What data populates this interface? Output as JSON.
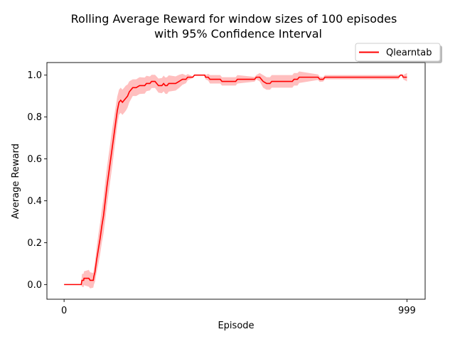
{
  "chart_data": {
    "type": "line",
    "title": "Rolling Average Reward for window sizes of 100 episodes",
    "subtitle": "with 95% Confidence Interval",
    "xlabel": "Episode",
    "ylabel": "Average Reward",
    "xlim": [
      -50,
      1052
    ],
    "ylim": [
      -0.07,
      1.06
    ],
    "x_ticks": [
      {
        "value": 0,
        "label": "0"
      },
      {
        "value": 999,
        "label": "999"
      }
    ],
    "y_ticks": [
      {
        "value": 0.0,
        "label": "0.0"
      },
      {
        "value": 0.2,
        "label": "0.2"
      },
      {
        "value": 0.4,
        "label": "0.4"
      },
      {
        "value": 0.6,
        "label": "0.6"
      },
      {
        "value": 0.8,
        "label": "0.8"
      },
      {
        "value": 1.0,
        "label": "1.0"
      }
    ],
    "grid": false,
    "legend": {
      "position": "above-right",
      "shadow": true
    },
    "series": [
      {
        "name": "Qlearntab",
        "color": "#ff0000",
        "band_color": "#ff8080",
        "points": [
          [
            0,
            0.0
          ],
          [
            50,
            0.0
          ],
          [
            52,
            0.02
          ],
          [
            57,
            0.02
          ],
          [
            58,
            0.03
          ],
          [
            72,
            0.03
          ],
          [
            76,
            0.02
          ],
          [
            85,
            0.02
          ],
          [
            87,
            0.04
          ],
          [
            90,
            0.06
          ],
          [
            95,
            0.12
          ],
          [
            100,
            0.17
          ],
          [
            105,
            0.22
          ],
          [
            110,
            0.28
          ],
          [
            115,
            0.33
          ],
          [
            120,
            0.4
          ],
          [
            125,
            0.47
          ],
          [
            130,
            0.53
          ],
          [
            135,
            0.59
          ],
          [
            140,
            0.65
          ],
          [
            145,
            0.71
          ],
          [
            150,
            0.77
          ],
          [
            155,
            0.83
          ],
          [
            160,
            0.87
          ],
          [
            165,
            0.88
          ],
          [
            170,
            0.87
          ],
          [
            175,
            0.88
          ],
          [
            180,
            0.89
          ],
          [
            185,
            0.9
          ],
          [
            190,
            0.92
          ],
          [
            195,
            0.93
          ],
          [
            200,
            0.94
          ],
          [
            210,
            0.94
          ],
          [
            220,
            0.95
          ],
          [
            235,
            0.95
          ],
          [
            240,
            0.96
          ],
          [
            250,
            0.96
          ],
          [
            255,
            0.97
          ],
          [
            265,
            0.97
          ],
          [
            270,
            0.96
          ],
          [
            275,
            0.95
          ],
          [
            285,
            0.95
          ],
          [
            290,
            0.96
          ],
          [
            295,
            0.95
          ],
          [
            300,
            0.95
          ],
          [
            305,
            0.96
          ],
          [
            325,
            0.96
          ],
          [
            335,
            0.97
          ],
          [
            345,
            0.98
          ],
          [
            355,
            0.98
          ],
          [
            360,
            0.99
          ],
          [
            375,
            0.99
          ],
          [
            380,
            1.0
          ],
          [
            410,
            1.0
          ],
          [
            412,
            0.99
          ],
          [
            420,
            0.99
          ],
          [
            425,
            0.98
          ],
          [
            455,
            0.98
          ],
          [
            460,
            0.97
          ],
          [
            500,
            0.97
          ],
          [
            505,
            0.98
          ],
          [
            555,
            0.98
          ],
          [
            560,
            0.99
          ],
          [
            570,
            0.99
          ],
          [
            575,
            0.98
          ],
          [
            580,
            0.97
          ],
          [
            590,
            0.96
          ],
          [
            600,
            0.96
          ],
          [
            605,
            0.97
          ],
          [
            665,
            0.97
          ],
          [
            670,
            0.98
          ],
          [
            680,
            0.98
          ],
          [
            685,
            0.99
          ],
          [
            740,
            0.99
          ],
          [
            745,
            0.98
          ],
          [
            755,
            0.98
          ],
          [
            760,
            0.99
          ],
          [
            975,
            0.99
          ],
          [
            980,
            1.0
          ],
          [
            985,
            1.0
          ],
          [
            988,
            0.99
          ],
          [
            999,
            0.99
          ]
        ],
        "ci_halfwidth": [
          [
            0,
            0.0
          ],
          [
            50,
            0.0
          ],
          [
            52,
            0.03
          ],
          [
            72,
            0.04
          ],
          [
            85,
            0.035
          ],
          [
            100,
            0.07
          ],
          [
            120,
            0.09
          ],
          [
            140,
            0.09
          ],
          [
            160,
            0.06
          ],
          [
            180,
            0.06
          ],
          [
            200,
            0.04
          ],
          [
            230,
            0.04
          ],
          [
            260,
            0.03
          ],
          [
            300,
            0.04
          ],
          [
            340,
            0.03
          ],
          [
            380,
            0.0
          ],
          [
            410,
            0.0
          ],
          [
            412,
            0.01
          ],
          [
            425,
            0.02
          ],
          [
            500,
            0.02
          ],
          [
            520,
            0.02
          ],
          [
            560,
            0.01
          ],
          [
            580,
            0.03
          ],
          [
            600,
            0.03
          ],
          [
            620,
            0.03
          ],
          [
            680,
            0.03
          ],
          [
            700,
            0.02
          ],
          [
            760,
            0.01
          ],
          [
            975,
            0.01
          ],
          [
            980,
            0.0
          ],
          [
            985,
            0.0
          ],
          [
            988,
            0.01
          ],
          [
            999,
            0.02
          ]
        ]
      }
    ]
  }
}
